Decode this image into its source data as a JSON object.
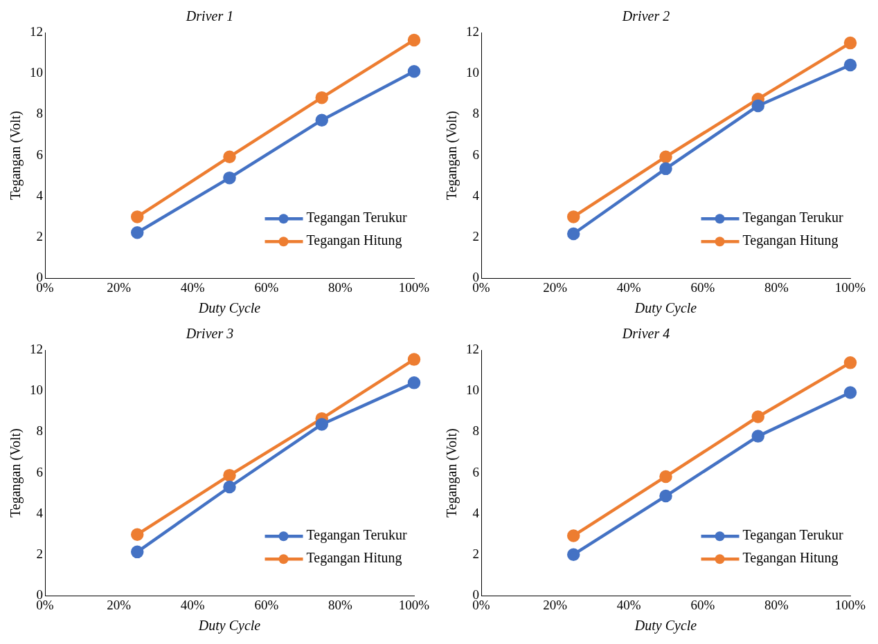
{
  "chart_data": [
    {
      "type": "line",
      "title": "Driver 1",
      "xlabel": "Duty Cycle",
      "ylabel": "Tegangan (Volt)",
      "x": [
        0.25,
        0.5,
        0.75,
        1
      ],
      "xlim": [
        0,
        1
      ],
      "xticks": [
        {
          "value": 0,
          "label": "0%"
        },
        {
          "value": 0.2,
          "label": "20%"
        },
        {
          "value": 0.4,
          "label": "40%"
        },
        {
          "value": 0.6,
          "label": "60%"
        },
        {
          "value": 0.8,
          "label": "80%"
        },
        {
          "value": 1,
          "label": "100%"
        }
      ],
      "ylim": [
        0,
        12
      ],
      "yticks": [
        0,
        2,
        4,
        6,
        8,
        10,
        12
      ],
      "grid": false,
      "legend": "bottom right",
      "marker": "circle",
      "line_style": "solid",
      "series": [
        {
          "name": "Tegangan Terukur",
          "color": "#4472c4",
          "values": [
            2.23,
            4.9,
            7.72,
            10.1
          ]
        },
        {
          "name": "Tegangan Hitung",
          "color": "#ed7d31",
          "values": [
            3.0,
            5.93,
            8.82,
            11.63
          ]
        }
      ]
    },
    {
      "type": "line",
      "title": "Driver 2",
      "xlabel": "Duty Cycle",
      "ylabel": "Tegangan (Volt)",
      "x": [
        0.25,
        0.5,
        0.75,
        1
      ],
      "xlim": [
        0,
        1
      ],
      "xticks": [
        {
          "value": 0,
          "label": "0%"
        },
        {
          "value": 0.2,
          "label": "20%"
        },
        {
          "value": 0.4,
          "label": "40%"
        },
        {
          "value": 0.6,
          "label": "60%"
        },
        {
          "value": 0.8,
          "label": "80%"
        },
        {
          "value": 1,
          "label": "100%"
        }
      ],
      "ylim": [
        0,
        12
      ],
      "yticks": [
        0,
        2,
        4,
        6,
        8,
        10,
        12
      ],
      "grid": false,
      "legend": "bottom right",
      "marker": "circle",
      "line_style": "solid",
      "series": [
        {
          "name": "Tegangan Terukur",
          "color": "#4472c4",
          "values": [
            2.17,
            5.35,
            8.42,
            10.41
          ]
        },
        {
          "name": "Tegangan Hitung",
          "color": "#ed7d31",
          "values": [
            3.0,
            5.93,
            8.75,
            11.49
          ]
        }
      ]
    },
    {
      "type": "line",
      "title": "Driver 3",
      "xlabel": "Duty Cycle",
      "ylabel": "Tegangan (Volt)",
      "x": [
        0.25,
        0.5,
        0.75,
        1
      ],
      "xlim": [
        0,
        1
      ],
      "xticks": [
        {
          "value": 0,
          "label": "0%"
        },
        {
          "value": 0.2,
          "label": "20%"
        },
        {
          "value": 0.4,
          "label": "40%"
        },
        {
          "value": 0.6,
          "label": "60%"
        },
        {
          "value": 0.8,
          "label": "80%"
        },
        {
          "value": 1,
          "label": "100%"
        }
      ],
      "ylim": [
        0,
        12
      ],
      "yticks": [
        0,
        2,
        4,
        6,
        8,
        10,
        12
      ],
      "grid": false,
      "legend": "bottom right",
      "marker": "circle",
      "line_style": "solid",
      "series": [
        {
          "name": "Tegangan Terukur",
          "color": "#4472c4",
          "values": [
            2.14,
            5.31,
            8.37,
            10.4
          ]
        },
        {
          "name": "Tegangan Hitung",
          "color": "#ed7d31",
          "values": [
            2.99,
            5.88,
            8.65,
            11.54
          ]
        }
      ]
    },
    {
      "type": "line",
      "title": "Driver 4",
      "xlabel": "Duty Cycle",
      "ylabel": "Tegangan (Volt)",
      "x": [
        0.25,
        0.5,
        0.75,
        1
      ],
      "xlim": [
        0,
        1
      ],
      "xticks": [
        {
          "value": 0,
          "label": "0%"
        },
        {
          "value": 0.2,
          "label": "20%"
        },
        {
          "value": 0.4,
          "label": "40%"
        },
        {
          "value": 0.6,
          "label": "60%"
        },
        {
          "value": 0.8,
          "label": "80%"
        },
        {
          "value": 1,
          "label": "100%"
        }
      ],
      "ylim": [
        0,
        12
      ],
      "yticks": [
        0,
        2,
        4,
        6,
        8,
        10,
        12
      ],
      "grid": false,
      "legend": "bottom right",
      "marker": "circle",
      "line_style": "solid",
      "series": [
        {
          "name": "Tegangan Terukur",
          "color": "#4472c4",
          "values": [
            2.01,
            4.87,
            7.79,
            9.92
          ]
        },
        {
          "name": "Tegangan Hitung",
          "color": "#ed7d31",
          "values": [
            2.93,
            5.82,
            8.74,
            11.38
          ]
        }
      ]
    }
  ]
}
